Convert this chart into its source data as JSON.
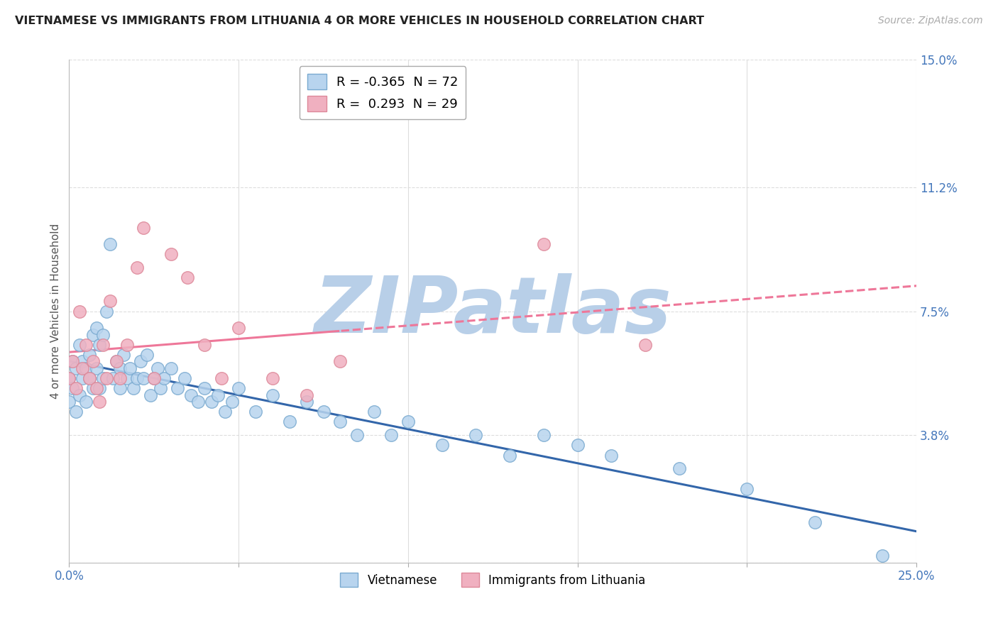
{
  "title": "VIETNAMESE VS IMMIGRANTS FROM LITHUANIA 4 OR MORE VEHICLES IN HOUSEHOLD CORRELATION CHART",
  "source": "Source: ZipAtlas.com",
  "ylabel": "4 or more Vehicles in Household",
  "xlim": [
    0.0,
    25.0
  ],
  "ylim": [
    0.0,
    15.0
  ],
  "xticks": [
    0.0,
    5.0,
    10.0,
    15.0,
    20.0,
    25.0
  ],
  "xtick_labels": [
    "0.0%",
    "",
    "",
    "",
    "",
    "25.0%"
  ],
  "yticks": [
    0.0,
    3.8,
    7.5,
    11.2,
    15.0
  ],
  "ytick_labels": [
    "",
    "3.8%",
    "7.5%",
    "11.2%",
    "15.0%"
  ],
  "background_color": "#ffffff",
  "watermark": "ZIPatlas",
  "watermark_color": "#b8cfe8",
  "grid_color": "#dddddd",
  "series": [
    {
      "name": "Vietnamese",
      "color": "#b8d4ee",
      "edge_color": "#7aaad0",
      "R": -0.365,
      "N": 72,
      "trend_color": "#3366aa",
      "trend_style": "solid",
      "points_x": [
        0.0,
        0.0,
        0.1,
        0.1,
        0.2,
        0.2,
        0.3,
        0.3,
        0.4,
        0.4,
        0.5,
        0.5,
        0.6,
        0.6,
        0.7,
        0.7,
        0.8,
        0.8,
        0.9,
        0.9,
        1.0,
        1.0,
        1.1,
        1.2,
        1.3,
        1.4,
        1.5,
        1.5,
        1.6,
        1.7,
        1.8,
        1.9,
        2.0,
        2.1,
        2.2,
        2.3,
        2.4,
        2.5,
        2.6,
        2.7,
        2.8,
        3.0,
        3.2,
        3.4,
        3.6,
        3.8,
        4.0,
        4.2,
        4.4,
        4.6,
        4.8,
        5.0,
        5.5,
        6.0,
        6.5,
        7.0,
        7.5,
        8.0,
        8.5,
        9.0,
        9.5,
        10.0,
        11.0,
        12.0,
        13.0,
        14.0,
        15.0,
        16.0,
        18.0,
        20.0,
        22.0,
        24.0
      ],
      "points_y": [
        5.5,
        4.8,
        6.0,
        5.2,
        5.8,
        4.5,
        6.5,
        5.0,
        6.0,
        5.5,
        5.8,
        4.8,
        6.2,
        5.5,
        6.8,
        5.2,
        7.0,
        5.8,
        6.5,
        5.2,
        6.8,
        5.5,
        7.5,
        9.5,
        5.5,
        6.0,
        5.8,
        5.2,
        6.2,
        5.5,
        5.8,
        5.2,
        5.5,
        6.0,
        5.5,
        6.2,
        5.0,
        5.5,
        5.8,
        5.2,
        5.5,
        5.8,
        5.2,
        5.5,
        5.0,
        4.8,
        5.2,
        4.8,
        5.0,
        4.5,
        4.8,
        5.2,
        4.5,
        5.0,
        4.2,
        4.8,
        4.5,
        4.2,
        3.8,
        4.5,
        3.8,
        4.2,
        3.5,
        3.8,
        3.2,
        3.8,
        3.5,
        3.2,
        2.8,
        2.2,
        1.2,
        0.2
      ]
    },
    {
      "name": "Immigrants from Lithuania",
      "color": "#f0b0c0",
      "edge_color": "#dd8899",
      "R": 0.293,
      "N": 29,
      "trend_color": "#ee7799",
      "trend_style": "solid_then_dashed",
      "trend_solid_end": 8.0,
      "points_x": [
        0.0,
        0.1,
        0.2,
        0.3,
        0.4,
        0.5,
        0.6,
        0.7,
        0.8,
        0.9,
        1.0,
        1.1,
        1.2,
        1.4,
        1.5,
        1.7,
        2.0,
        2.2,
        2.5,
        3.0,
        3.5,
        4.0,
        4.5,
        5.0,
        6.0,
        7.0,
        8.0,
        14.0,
        17.0
      ],
      "points_y": [
        5.5,
        6.0,
        5.2,
        7.5,
        5.8,
        6.5,
        5.5,
        6.0,
        5.2,
        4.8,
        6.5,
        5.5,
        7.8,
        6.0,
        5.5,
        6.5,
        8.8,
        10.0,
        5.5,
        9.2,
        8.5,
        6.5,
        5.5,
        7.0,
        5.5,
        5.0,
        6.0,
        9.5,
        6.5
      ]
    }
  ]
}
